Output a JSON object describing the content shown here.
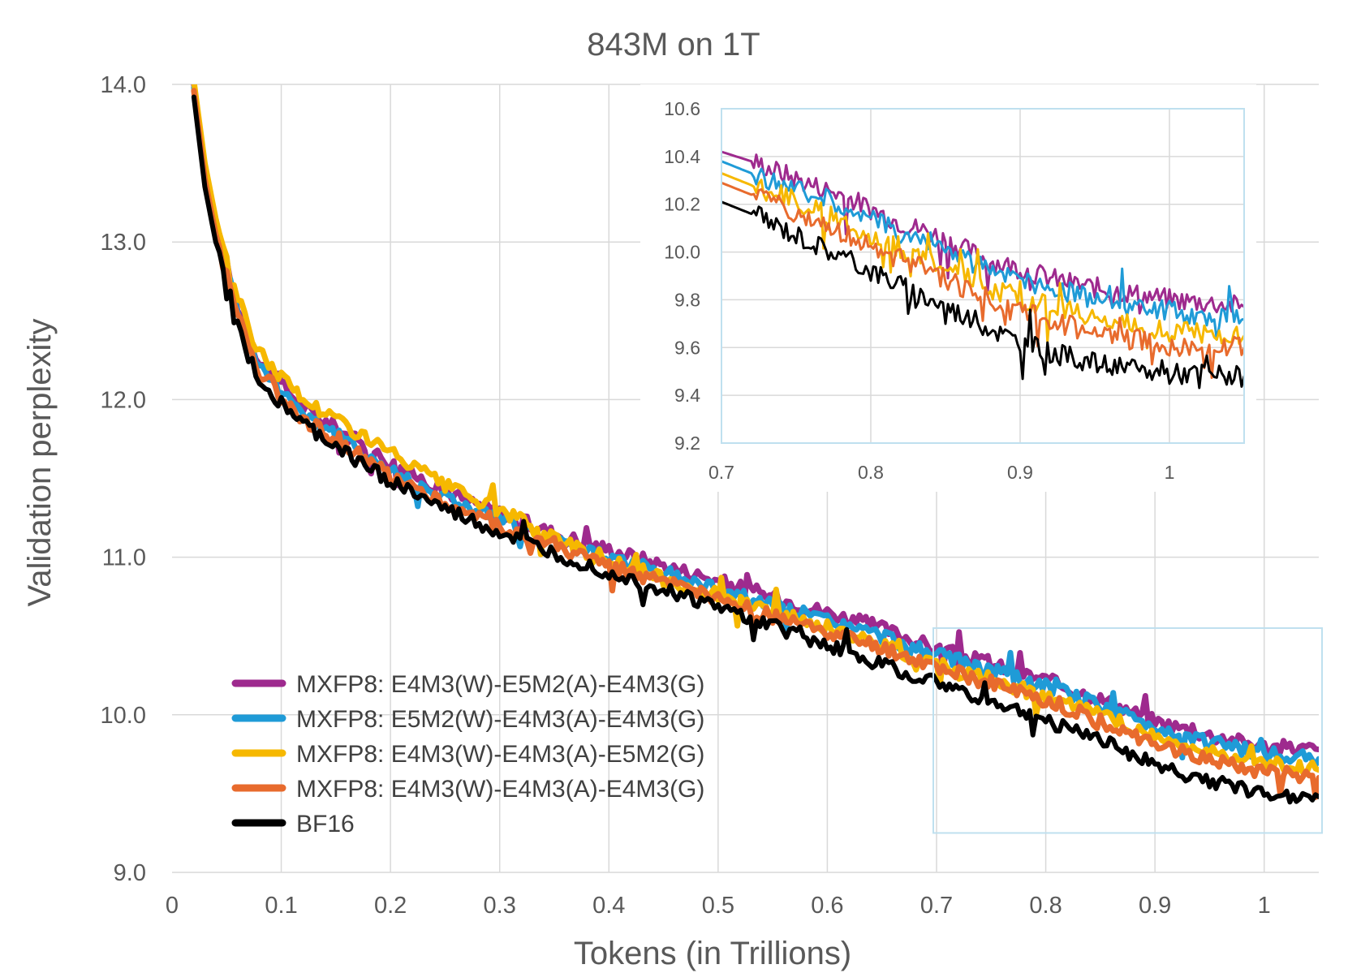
{
  "chart_data": [
    {
      "id": "main",
      "type": "line",
      "title": "843M on 1T",
      "xlabel": "Tokens (in Trillions)",
      "ylabel": "Validation perplexity",
      "xlim": [
        0,
        1.05
      ],
      "ylim": [
        9.0,
        14.0
      ],
      "x_ticks": [
        0,
        0.1,
        0.2,
        0.3,
        0.4,
        0.5,
        0.6,
        0.7,
        0.8,
        0.9,
        1
      ],
      "y_ticks": [
        9.0,
        10.0,
        11.0,
        12.0,
        13.0,
        14.0
      ],
      "grid": true,
      "legend_position": "lower-left",
      "zoom_region": {
        "x": [
          0.7,
          1.05
        ],
        "y": [
          9.2,
          10.6
        ]
      },
      "x": [
        0.02,
        0.03,
        0.04,
        0.05,
        0.06,
        0.07,
        0.08,
        0.1,
        0.12,
        0.15,
        0.2,
        0.25,
        0.3,
        0.35,
        0.4,
        0.45,
        0.5,
        0.55,
        0.6,
        0.65,
        0.7,
        0.75,
        0.8,
        0.85,
        0.9,
        0.95,
        1.0,
        1.05
      ],
      "series": [
        {
          "name": "MXFP8: E4M3(W)-E5M2(A)-E4M3(G)",
          "color": "#9e2a8e",
          "values": [
            14.0,
            13.45,
            13.1,
            12.85,
            12.6,
            12.4,
            12.25,
            12.1,
            11.95,
            11.82,
            11.6,
            11.42,
            11.28,
            11.15,
            11.05,
            10.95,
            10.85,
            10.75,
            10.65,
            10.55,
            10.42,
            10.32,
            10.22,
            10.1,
            9.96,
            9.87,
            9.8,
            9.78
          ]
        },
        {
          "name": "MXFP8: E5M2(W)-E4M3(A)-E4M3(G)",
          "color": "#1f9bd7",
          "values": [
            13.98,
            13.43,
            13.08,
            12.82,
            12.58,
            12.38,
            12.22,
            12.07,
            11.92,
            11.78,
            11.55,
            11.38,
            11.24,
            11.1,
            11.0,
            10.9,
            10.8,
            10.7,
            10.6,
            10.5,
            10.38,
            10.28,
            10.18,
            10.06,
            9.92,
            9.83,
            9.75,
            9.72
          ]
        },
        {
          "name": "MXFP8: E4M3(W)-E4M3(A)-E5M2(G)",
          "color": "#f6b800",
          "values": [
            14.02,
            13.5,
            13.15,
            12.9,
            12.65,
            12.45,
            12.3,
            12.15,
            12.0,
            11.88,
            11.66,
            11.45,
            11.3,
            11.12,
            10.98,
            10.86,
            10.76,
            10.65,
            10.55,
            10.44,
            10.33,
            10.22,
            10.12,
            10.0,
            9.86,
            9.76,
            9.69,
            9.65
          ]
        },
        {
          "name": "MXFP8: E4M3(W)-E4M3(A)-E4M3(G)",
          "color": "#e86b2d",
          "values": [
            13.96,
            13.4,
            13.05,
            12.78,
            12.55,
            12.35,
            12.18,
            12.04,
            11.88,
            11.74,
            11.52,
            11.34,
            11.2,
            11.06,
            10.95,
            10.84,
            10.73,
            10.62,
            10.52,
            10.42,
            10.3,
            10.2,
            10.08,
            9.96,
            9.82,
            9.72,
            9.64,
            9.6
          ]
        },
        {
          "name": "BF16",
          "color": "#000000",
          "values": [
            13.92,
            13.35,
            13.0,
            12.72,
            12.5,
            12.28,
            12.12,
            11.98,
            11.84,
            11.7,
            11.48,
            11.3,
            11.15,
            11.02,
            10.9,
            10.79,
            10.68,
            10.56,
            10.44,
            10.32,
            10.2,
            10.08,
            9.96,
            9.85,
            9.68,
            9.58,
            9.5,
            9.48
          ]
        }
      ]
    },
    {
      "id": "inset",
      "type": "line",
      "title": "",
      "xlabel": "",
      "ylabel": "",
      "xlim": [
        0.7,
        1.05
      ],
      "ylim": [
        9.2,
        10.6
      ],
      "x_ticks": [
        "0.7",
        "0.8",
        "0.9",
        "1"
      ],
      "y_ticks": [
        "9.2",
        "9.4",
        "9.6",
        "9.8",
        "10.0",
        "10.2",
        "10.4",
        "10.6"
      ],
      "grid": true,
      "x": [
        0.7,
        0.72,
        0.74,
        0.76,
        0.78,
        0.8,
        0.82,
        0.84,
        0.86,
        0.88,
        0.9,
        0.92,
        0.94,
        0.96,
        0.98,
        1.0,
        1.02,
        1.05
      ],
      "series": [
        {
          "name": "MXFP8: E4M3(W)-E5M2(A)-E4M3(G)",
          "color": "#9e2a8e",
          "values": [
            10.42,
            10.38,
            10.33,
            10.28,
            10.24,
            10.18,
            10.12,
            10.08,
            10.02,
            9.96,
            9.93,
            9.89,
            9.86,
            9.84,
            9.82,
            9.8,
            9.79,
            9.77
          ]
        },
        {
          "name": "MXFP8: E5M2(W)-E4M3(A)-E4M3(G)",
          "color": "#1f9bd7",
          "values": [
            10.38,
            10.33,
            10.29,
            10.24,
            10.2,
            10.14,
            10.08,
            10.04,
            9.98,
            9.92,
            9.89,
            9.85,
            9.82,
            9.79,
            9.77,
            9.75,
            9.74,
            9.72
          ]
        },
        {
          "name": "MXFP8: E4M3(W)-E4M3(A)-E5M2(G)",
          "color": "#f6b800",
          "values": [
            10.33,
            10.28,
            10.24,
            10.18,
            10.13,
            10.07,
            10.02,
            9.97,
            9.91,
            9.85,
            9.81,
            9.77,
            9.74,
            9.71,
            9.69,
            9.67,
            9.66,
            9.65
          ]
        },
        {
          "name": "MXFP8: E4M3(W)-E4M3(A)-E4M3(G)",
          "color": "#e86b2d",
          "values": [
            10.29,
            10.24,
            10.19,
            10.13,
            10.08,
            10.02,
            9.97,
            9.92,
            9.86,
            9.8,
            9.75,
            9.71,
            9.68,
            9.65,
            9.63,
            9.61,
            9.6,
            9.6
          ]
        },
        {
          "name": "BF16",
          "color": "#000000",
          "values": [
            10.21,
            10.16,
            10.1,
            10.04,
            9.98,
            9.92,
            9.86,
            9.8,
            9.74,
            9.68,
            9.62,
            9.58,
            9.55,
            9.52,
            9.5,
            9.49,
            9.49,
            9.48
          ]
        }
      ]
    }
  ]
}
